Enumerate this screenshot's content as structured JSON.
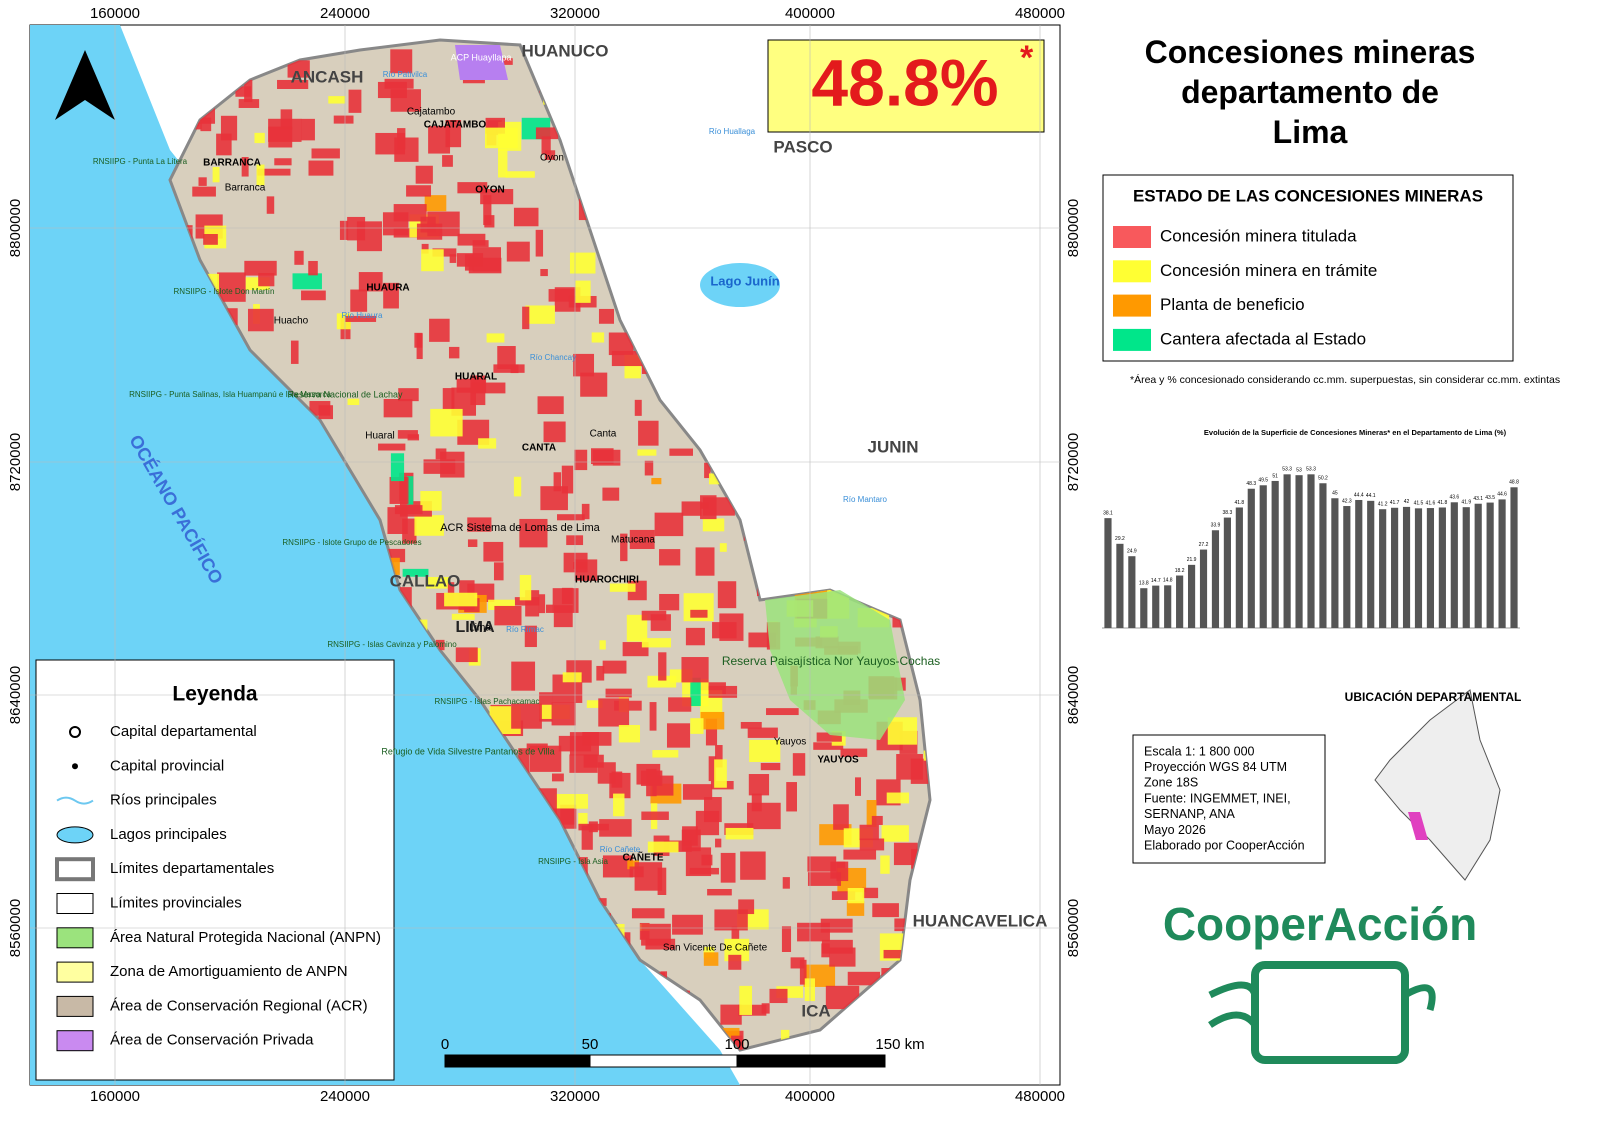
{
  "map": {
    "headline": "48.8%",
    "headline_mark": "*",
    "title": "Concesiones mineras departamento de Lima",
    "x_ticks": [
      160000,
      240000,
      320000,
      400000,
      480000
    ],
    "y_ticks": [
      8800000,
      8720000,
      8640000,
      8560000
    ],
    "places": [
      "ANCASH",
      "HUANUCO",
      "PASCO",
      "JUNIN",
      "HUANCAVELICA",
      "ICA",
      "CALLAO",
      "LIMA",
      "OCÉANO PACÍFICO",
      "Lago Junín",
      "BARRANCA",
      "CAJATAMBO",
      "OYON",
      "HUAURA",
      "HUARAL",
      "CANTA",
      "HUAROCHIRI",
      "YAUYOS",
      "CAÑETE",
      "Barranca",
      "Huacho",
      "Huaral",
      "Canta",
      "Oyon",
      "Cajatambo",
      "Matucana",
      "Lima",
      "Yauyos",
      "San Vicente De Cañete",
      "ACP Huayllapa",
      "Reserva Paisajística Nor Yauyos-Cochas",
      "ACR Sistema de Lomas de Lima",
      "Reserva Nacional de Lachay",
      "Refugio de Vida Silvestre Pantanos de Villa",
      "RNSIIPG - Punta La Litera",
      "RNSIIPG - Islote Don Martín",
      "RNSIIPG - Punta Salinas, Isla Huampanú e Isla Mazorca",
      "RNSIIPG - Islote Grupo de Pescadores",
      "RNSIIPG - Islas Cavinza y Palomino",
      "RNSIIPG - Islas Pachacamac",
      "RNSIIPG - Isla Asia",
      "Río Huaura",
      "Río Chancay",
      "Río Rímac",
      "Río Mantaro",
      "Río Cañete",
      "Río Pativilca",
      "Río Huallaga"
    ],
    "scale_labels": [
      "0",
      "50",
      "100",
      "150 km"
    ],
    "legend": {
      "title": "Leyenda",
      "items": [
        "Capital departamental",
        "Capital provincial",
        "Ríos principales",
        "Lagos principales",
        "Límites departamentales",
        "Límites provinciales",
        "Área Natural Protegida Nacional (ANPN)",
        "Zona de Amortiguamiento de ANPN",
        "Área de Conservación Regional (ACR)",
        "Área de Conservación Privada"
      ]
    },
    "status_legend": {
      "title": "ESTADO DE LAS CONCESIONES MINERAS",
      "items": [
        {
          "label": "Concesión minera titulada",
          "color": "#f8595c"
        },
        {
          "label": "Concesión minera en trámite",
          "color": "#ffff33"
        },
        {
          "label": "Planta de beneficio",
          "color": "#ff9900"
        },
        {
          "label": "Cantera afectada al Estado",
          "color": "#00e68a"
        }
      ]
    },
    "footnote": "*Área y % concesionado considerando cc.mm. superpuestas, sin considerar cc.mm. extintas",
    "location_title": "UBICACIÓN DEPARTAMENTAL",
    "info": [
      "Escala 1: 1 800 000",
      "Proyección WGS 84 UTM",
      "Zone 18S",
      "Fuente: INGEMMET, INEI,",
      "SERNANP, ANA",
      "Mayo 2026",
      "Elaborado por CooperAcción"
    ],
    "logo": "CooperAcción"
  },
  "chart_data": {
    "type": "bar",
    "title": "Evolución de la Superficie de Concesiones Mineras* en el Departamento de Lima (%)",
    "categories": [
      null,
      null,
      null,
      null,
      null,
      null,
      null,
      null,
      null,
      null,
      null,
      null,
      null,
      null,
      null,
      null,
      null,
      null,
      null,
      null,
      null,
      null,
      null,
      null,
      null,
      null,
      null,
      null,
      null,
      null,
      null,
      null,
      null,
      null,
      null
    ],
    "values": [
      38.1,
      29.2,
      24.9,
      13.8,
      14.7,
      14.8,
      18.2,
      21.9,
      27.2,
      33.9,
      38.3,
      41.8,
      48.3,
      49.5,
      51.0,
      53.3,
      53.0,
      53.3,
      50.2,
      45.0,
      42.3,
      44.4,
      44.1,
      41.2,
      41.7,
      42.0,
      41.5,
      41.6,
      41.8,
      43.6,
      41.9,
      43.1,
      43.5,
      44.6,
      48.8
    ],
    "color": "#555555",
    "ylim": [
      0,
      60
    ]
  }
}
